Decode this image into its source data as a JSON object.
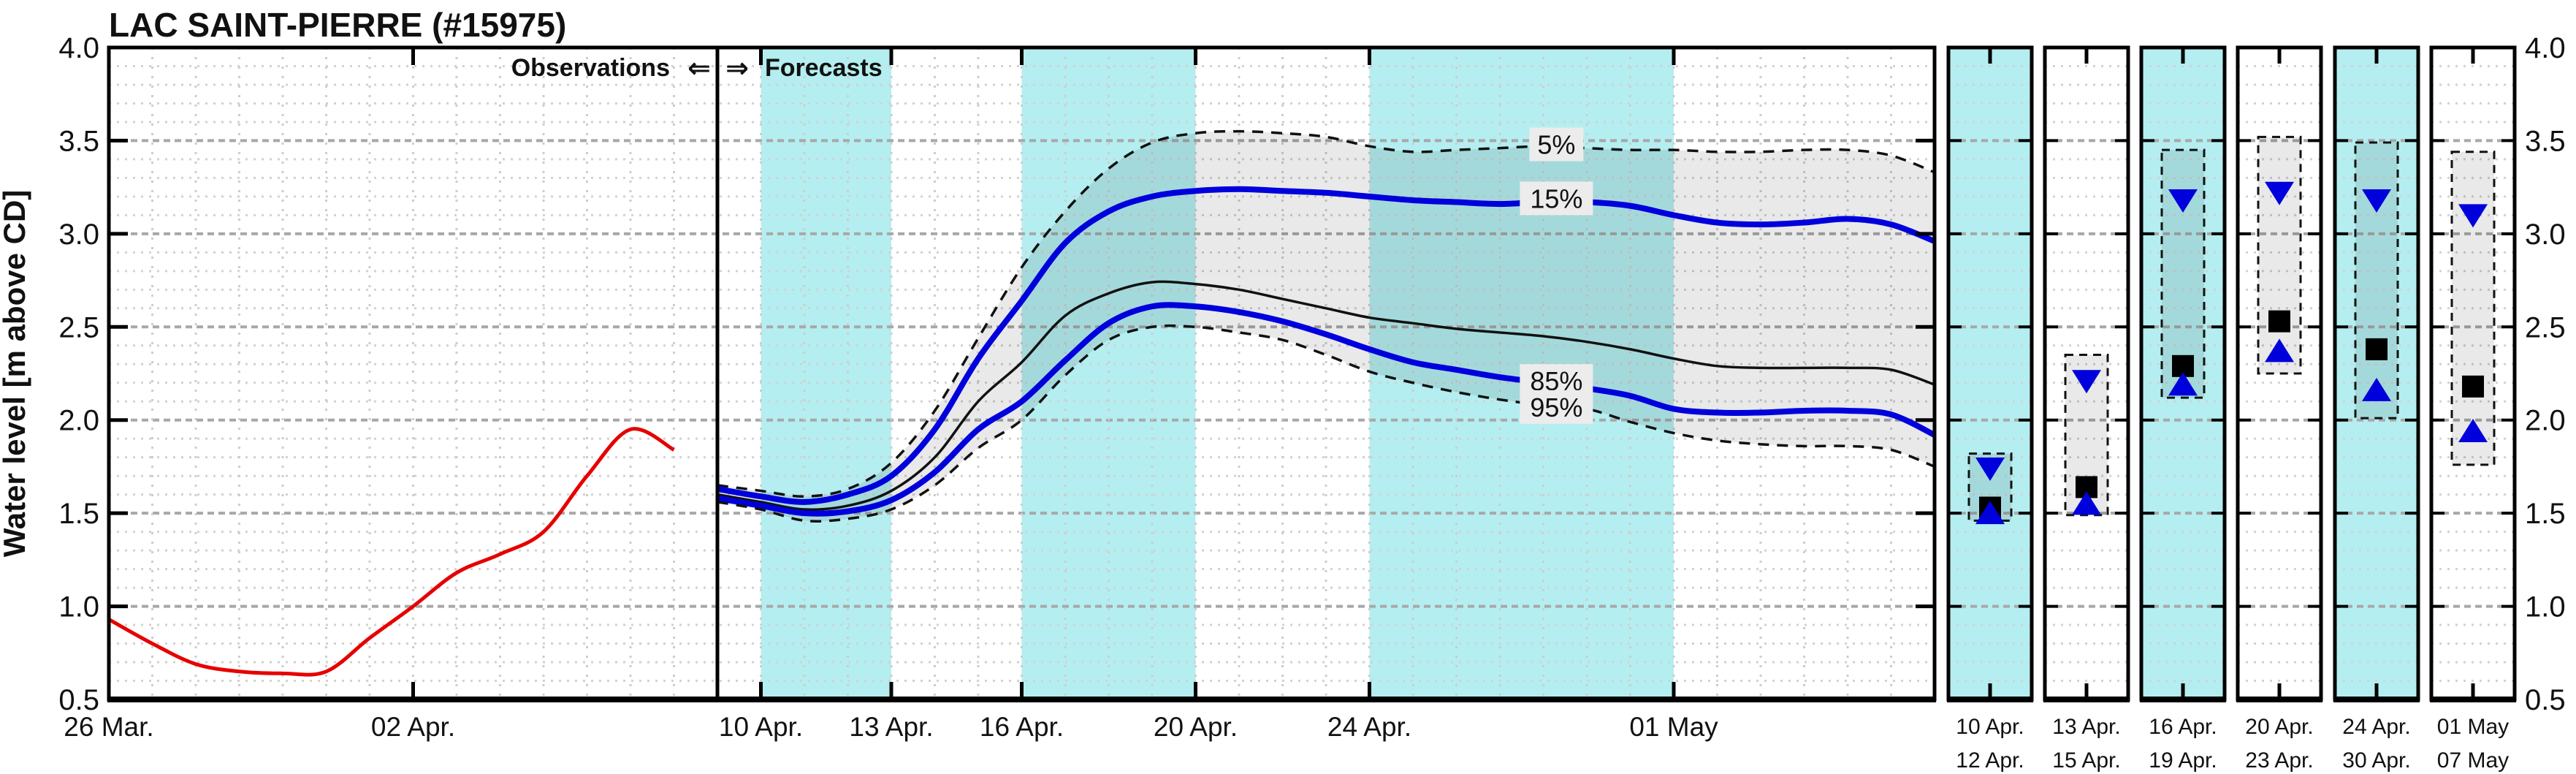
{
  "title": "LAC SAINT-PIERRE (#15975)",
  "annotations": {
    "observations": "Observations",
    "forecasts": "Forecasts",
    "arrow_left": "⇐",
    "arrow_right": "⇒"
  },
  "colors": {
    "observed_red": "#e60000",
    "quantile_blue": "#0000dd",
    "median_black": "#111111",
    "dashed_black": "#111111",
    "shading_cyan": "#b4eef0",
    "uncertainty_fill": "rgba(0,0,0,0.085)",
    "label_halo": "#ececec",
    "grid_minor": "#d2d2d2",
    "grid_major": "#a8a8a8",
    "grid_vertical": "#cdcdcd",
    "axis_black": "#000000"
  },
  "chart_data": [
    {
      "type": "line",
      "title": "LAC SAINT-PIERRE (#15975)",
      "xlabel": "",
      "ylabel": "Water level [m above CD]",
      "ylim": [
        0.5,
        4.0
      ],
      "grid": true,
      "y_ticks": [
        "4.0",
        "3.5",
        "3.0",
        "2.5",
        "2.0",
        "1.5",
        "1.0",
        "0.5"
      ],
      "x_ticks": [
        {
          "label": "26 Mar.",
          "day": 0
        },
        {
          "label": "02 Apr.",
          "day": 7
        },
        {
          "label": "10 Apr.",
          "day": 15
        },
        {
          "label": "13 Apr.",
          "day": 18
        },
        {
          "label": "16 Apr.",
          "day": 21
        },
        {
          "label": "20 Apr.",
          "day": 25
        },
        {
          "label": "24 Apr.",
          "day": 29
        },
        {
          "label": "01 May",
          "day": 36
        }
      ],
      "x_domain_days": 42,
      "forecast_start_day": 14,
      "shaded_periods_days": [
        [
          15,
          18
        ],
        [
          21,
          25
        ],
        [
          29,
          36
        ]
      ],
      "observed": {
        "name": "observed-water-level",
        "start_label": "26 Mar.",
        "daily_values": [
          0.93,
          0.8,
          0.69,
          0.65,
          0.64,
          0.65,
          0.83,
          1.0,
          1.18,
          1.28,
          1.4,
          1.7,
          1.95,
          1.84
        ]
      },
      "forecast_series": [
        {
          "name": "5%",
          "line": "dashed",
          "color": "black",
          "daily_values": [
            1.65,
            1.62,
            1.59,
            1.63,
            1.77,
            2.05,
            2.44,
            2.82,
            3.12,
            3.35,
            3.49,
            3.54,
            3.55,
            3.54,
            3.52,
            3.47,
            3.44,
            3.45,
            3.46,
            3.47,
            3.46,
            3.45,
            3.45,
            3.44,
            3.44,
            3.45,
            3.45,
            3.42,
            3.33
          ]
        },
        {
          "name": "15%",
          "line": "solid",
          "color": "blue",
          "daily_values": [
            1.63,
            1.59,
            1.56,
            1.6,
            1.7,
            1.95,
            2.33,
            2.64,
            2.95,
            3.12,
            3.2,
            3.23,
            3.24,
            3.23,
            3.22,
            3.2,
            3.18,
            3.17,
            3.16,
            3.17,
            3.17,
            3.15,
            3.1,
            3.06,
            3.05,
            3.06,
            3.08,
            3.05,
            2.96
          ]
        },
        {
          "name": "50%",
          "line": "solid-thin",
          "color": "black",
          "daily_values": [
            1.6,
            1.56,
            1.52,
            1.54,
            1.62,
            1.8,
            2.1,
            2.31,
            2.56,
            2.68,
            2.74,
            2.73,
            2.7,
            2.65,
            2.6,
            2.55,
            2.52,
            2.49,
            2.47,
            2.45,
            2.42,
            2.38,
            2.33,
            2.29,
            2.28,
            2.28,
            2.28,
            2.27,
            2.19
          ]
        },
        {
          "name": "85%",
          "line": "solid",
          "color": "blue",
          "daily_values": [
            1.58,
            1.54,
            1.5,
            1.51,
            1.57,
            1.72,
            1.95,
            2.1,
            2.32,
            2.52,
            2.61,
            2.61,
            2.58,
            2.53,
            2.46,
            2.38,
            2.31,
            2.27,
            2.23,
            2.2,
            2.17,
            2.13,
            2.06,
            2.04,
            2.04,
            2.05,
            2.05,
            2.03,
            1.92
          ]
        },
        {
          "name": "95%",
          "line": "dashed",
          "color": "black",
          "daily_values": [
            1.56,
            1.52,
            1.46,
            1.47,
            1.52,
            1.65,
            1.85,
            2.0,
            2.24,
            2.43,
            2.5,
            2.5,
            2.47,
            2.43,
            2.35,
            2.26,
            2.2,
            2.15,
            2.11,
            2.08,
            2.06,
            1.99,
            1.93,
            1.89,
            1.87,
            1.86,
            1.86,
            1.84,
            1.75
          ]
        }
      ],
      "quantile_labels": [
        {
          "text": "5%",
          "level": 3.48,
          "day": 33.3,
          "color": "black"
        },
        {
          "text": "15%",
          "level": 3.19,
          "day": 33.3,
          "color": "blue"
        },
        {
          "text": "85%",
          "level": 2.21,
          "day": 33.3,
          "color": "blue"
        },
        {
          "text": "95%",
          "level": 2.07,
          "day": 33.3,
          "color": "black"
        }
      ]
    },
    {
      "type": "box-summary",
      "ylim": [
        0.5,
        4.0
      ],
      "marker_semantics": {
        "box_top": "5%",
        "triangle_down": "15%",
        "square": "50%",
        "triangle_up": "85%",
        "box_bottom": "95%"
      },
      "windows": [
        {
          "start_label": "10 Apr.",
          "end_label": "12 Apr.",
          "shaded": true,
          "q5": 1.82,
          "q15": 1.74,
          "q50": 1.53,
          "q85": 1.5,
          "q95": 1.46
        },
        {
          "start_label": "13 Apr.",
          "end_label": "15 Apr.",
          "shaded": false,
          "q5": 2.35,
          "q15": 2.21,
          "q50": 1.64,
          "q85": 1.55,
          "q95": 1.49
        },
        {
          "start_label": "16 Apr.",
          "end_label": "19 Apr.",
          "shaded": true,
          "q5": 3.45,
          "q15": 3.18,
          "q50": 2.29,
          "q85": 2.19,
          "q95": 2.12
        },
        {
          "start_label": "20 Apr.",
          "end_label": "23 Apr.",
          "shaded": false,
          "q5": 3.52,
          "q15": 3.22,
          "q50": 2.53,
          "q85": 2.37,
          "q95": 2.25
        },
        {
          "start_label": "24 Apr.",
          "end_label": "30 Apr.",
          "shaded": true,
          "q5": 3.49,
          "q15": 3.18,
          "q50": 2.38,
          "q85": 2.16,
          "q95": 2.01
        },
        {
          "start_label": "01 May",
          "end_label": "07 May",
          "shaded": false,
          "q5": 3.44,
          "q15": 3.1,
          "q50": 2.18,
          "q85": 1.94,
          "q95": 1.76
        }
      ]
    }
  ]
}
